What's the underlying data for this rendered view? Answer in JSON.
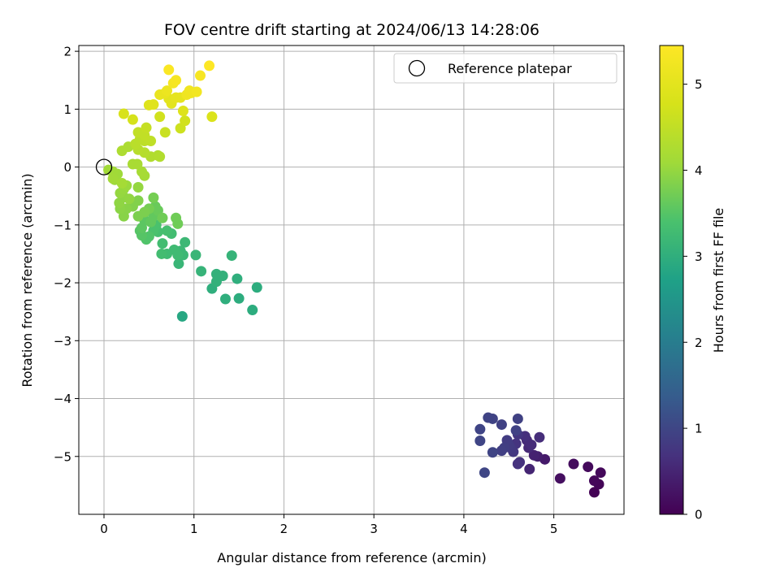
{
  "chart_data": {
    "type": "scatter",
    "title": "FOV centre drift starting at 2024/06/13 14:28:06",
    "xlabel": "Angular distance from reference (arcmin)",
    "ylabel": "Rotation from reference (arcmin)",
    "xlim": [
      -0.28,
      5.78
    ],
    "ylim": [
      -6.0,
      2.1
    ],
    "xticks": [
      0,
      1,
      2,
      3,
      4,
      5
    ],
    "yticks": [
      -5,
      -4,
      -3,
      -2,
      -1,
      0,
      1,
      2
    ],
    "grid": true,
    "legend": {
      "label": "Reference platepar",
      "placement": "top-right"
    },
    "reference_point": {
      "x": 0,
      "y": 0
    },
    "colorbar": {
      "label": "Hours from first FF file",
      "range": [
        0,
        5.45
      ],
      "ticks": [
        0,
        1,
        2,
        3,
        4,
        5
      ],
      "colormap": "viridis"
    },
    "points": [
      {
        "x": 5.45,
        "y": -5.62,
        "t": 0.02
      },
      {
        "x": 5.5,
        "y": -5.48,
        "t": 0.05
      },
      {
        "x": 5.45,
        "y": -5.42,
        "t": 0.08
      },
      {
        "x": 5.52,
        "y": -5.28,
        "t": 0.1
      },
      {
        "x": 5.38,
        "y": -5.18,
        "t": 0.12
      },
      {
        "x": 5.22,
        "y": -5.13,
        "t": 0.15
      },
      {
        "x": 5.07,
        "y": -5.38,
        "t": 0.2
      },
      {
        "x": 4.9,
        "y": -5.05,
        "t": 0.35
      },
      {
        "x": 4.82,
        "y": -5.0,
        "t": 0.4
      },
      {
        "x": 4.78,
        "y": -4.98,
        "t": 0.45
      },
      {
        "x": 4.73,
        "y": -5.22,
        "t": 0.5
      },
      {
        "x": 4.72,
        "y": -4.85,
        "t": 0.55
      },
      {
        "x": 4.7,
        "y": -4.72,
        "t": 0.58
      },
      {
        "x": 4.75,
        "y": -4.8,
        "t": 0.6
      },
      {
        "x": 4.84,
        "y": -4.67,
        "t": 0.62
      },
      {
        "x": 4.68,
        "y": -4.65,
        "t": 0.65
      },
      {
        "x": 4.62,
        "y": -5.1,
        "t": 0.68
      },
      {
        "x": 4.6,
        "y": -5.13,
        "t": 0.7
      },
      {
        "x": 4.58,
        "y": -4.78,
        "t": 0.72
      },
      {
        "x": 4.6,
        "y": -4.62,
        "t": 0.75
      },
      {
        "x": 4.55,
        "y": -4.92,
        "t": 0.78
      },
      {
        "x": 4.52,
        "y": -4.85,
        "t": 0.8
      },
      {
        "x": 4.5,
        "y": -4.8,
        "t": 0.82
      },
      {
        "x": 4.48,
        "y": -4.72,
        "t": 0.85
      },
      {
        "x": 4.45,
        "y": -4.85,
        "t": 0.88
      },
      {
        "x": 4.42,
        "y": -4.9,
        "t": 0.9
      },
      {
        "x": 4.42,
        "y": -4.45,
        "t": 0.92
      },
      {
        "x": 4.6,
        "y": -4.35,
        "t": 0.93
      },
      {
        "x": 4.58,
        "y": -4.55,
        "t": 0.94
      },
      {
        "x": 4.32,
        "y": -4.35,
        "t": 0.95
      },
      {
        "x": 4.27,
        "y": -4.33,
        "t": 0.96
      },
      {
        "x": 4.32,
        "y": -4.93,
        "t": 0.97
      },
      {
        "x": 4.18,
        "y": -4.53,
        "t": 0.98
      },
      {
        "x": 4.18,
        "y": -4.73,
        "t": 0.99
      },
      {
        "x": 4.23,
        "y": -5.28,
        "t": 1.0
      },
      {
        "x": 0.87,
        "y": -2.58,
        "t": 2.85
      },
      {
        "x": 1.65,
        "y": -2.47,
        "t": 2.95
      },
      {
        "x": 1.7,
        "y": -2.08,
        "t": 2.95
      },
      {
        "x": 1.5,
        "y": -2.27,
        "t": 2.95
      },
      {
        "x": 1.35,
        "y": -2.28,
        "t": 3.0
      },
      {
        "x": 1.48,
        "y": -1.93,
        "t": 3.0
      },
      {
        "x": 1.2,
        "y": -2.1,
        "t": 3.0
      },
      {
        "x": 1.25,
        "y": -1.98,
        "t": 3.05
      },
      {
        "x": 1.25,
        "y": -1.85,
        "t": 3.05
      },
      {
        "x": 1.32,
        "y": -1.88,
        "t": 3.05
      },
      {
        "x": 1.42,
        "y": -1.53,
        "t": 3.1
      },
      {
        "x": 1.08,
        "y": -1.8,
        "t": 3.1
      },
      {
        "x": 1.02,
        "y": -1.52,
        "t": 3.15
      },
      {
        "x": 0.83,
        "y": -1.67,
        "t": 3.15
      },
      {
        "x": 0.9,
        "y": -1.3,
        "t": 3.2
      },
      {
        "x": 0.88,
        "y": -1.52,
        "t": 3.2
      },
      {
        "x": 0.85,
        "y": -1.45,
        "t": 3.2
      },
      {
        "x": 0.78,
        "y": -1.43,
        "t": 3.25
      },
      {
        "x": 0.82,
        "y": -1.52,
        "t": 3.25
      },
      {
        "x": 0.7,
        "y": -1.5,
        "t": 3.25
      },
      {
        "x": 0.64,
        "y": -1.5,
        "t": 3.3
      },
      {
        "x": 0.65,
        "y": -1.32,
        "t": 3.3
      },
      {
        "x": 0.75,
        "y": -1.15,
        "t": 3.3
      },
      {
        "x": 0.7,
        "y": -1.1,
        "t": 3.35
      },
      {
        "x": 0.6,
        "y": -1.12,
        "t": 3.35
      },
      {
        "x": 0.58,
        "y": -1.0,
        "t": 3.4
      },
      {
        "x": 0.55,
        "y": -1.1,
        "t": 3.4
      },
      {
        "x": 0.5,
        "y": -1.2,
        "t": 3.45
      },
      {
        "x": 0.47,
        "y": -1.25,
        "t": 3.45
      },
      {
        "x": 0.42,
        "y": -1.18,
        "t": 3.5
      },
      {
        "x": 0.4,
        "y": -1.1,
        "t": 3.5
      },
      {
        "x": 0.42,
        "y": -1.05,
        "t": 3.55
      },
      {
        "x": 0.45,
        "y": -0.92,
        "t": 3.55
      },
      {
        "x": 0.52,
        "y": -0.95,
        "t": 3.6
      },
      {
        "x": 0.55,
        "y": -0.85,
        "t": 3.6
      },
      {
        "x": 0.6,
        "y": -0.75,
        "t": 3.65
      },
      {
        "x": 0.57,
        "y": -0.68,
        "t": 3.65
      },
      {
        "x": 0.65,
        "y": -0.88,
        "t": 3.7
      },
      {
        "x": 0.8,
        "y": -0.88,
        "t": 3.7
      },
      {
        "x": 0.82,
        "y": -0.98,
        "t": 3.7
      },
      {
        "x": 0.55,
        "y": -0.53,
        "t": 3.75
      },
      {
        "x": 0.5,
        "y": -0.72,
        "t": 3.75
      },
      {
        "x": 0.45,
        "y": -0.78,
        "t": 3.8
      },
      {
        "x": 0.38,
        "y": -0.85,
        "t": 3.8
      },
      {
        "x": 0.38,
        "y": -0.58,
        "t": 3.85
      },
      {
        "x": 0.32,
        "y": -0.68,
        "t": 3.85
      },
      {
        "x": 0.25,
        "y": -0.72,
        "t": 3.9
      },
      {
        "x": 0.22,
        "y": -0.85,
        "t": 3.9
      },
      {
        "x": 0.18,
        "y": -0.72,
        "t": 3.92
      },
      {
        "x": 0.17,
        "y": -0.62,
        "t": 3.95
      },
      {
        "x": 0.22,
        "y": -0.52,
        "t": 3.95
      },
      {
        "x": 0.28,
        "y": -0.55,
        "t": 3.98
      },
      {
        "x": 0.38,
        "y": -0.35,
        "t": 4.0
      },
      {
        "x": 0.18,
        "y": -0.45,
        "t": 4.0
      },
      {
        "x": 0.22,
        "y": -0.38,
        "t": 4.02
      },
      {
        "x": 0.25,
        "y": -0.32,
        "t": 4.05
      },
      {
        "x": 0.12,
        "y": -0.22,
        "t": 4.05
      },
      {
        "x": 0.15,
        "y": -0.12,
        "t": 4.08
      },
      {
        "x": 0.1,
        "y": -0.08,
        "t": 4.1
      },
      {
        "x": 0.05,
        "y": -0.05,
        "t": 4.1
      },
      {
        "x": 0.1,
        "y": -0.2,
        "t": 4.12
      },
      {
        "x": 0.2,
        "y": -0.28,
        "t": 4.15
      },
      {
        "x": 0.45,
        "y": -0.15,
        "t": 4.15
      },
      {
        "x": 0.42,
        "y": -0.08,
        "t": 4.18
      },
      {
        "x": 0.37,
        "y": 0.05,
        "t": 4.2
      },
      {
        "x": 0.32,
        "y": 0.05,
        "t": 4.2
      },
      {
        "x": 0.27,
        "y": 0.35,
        "t": 4.25
      },
      {
        "x": 0.2,
        "y": 0.28,
        "t": 4.25
      },
      {
        "x": 0.52,
        "y": 0.18,
        "t": 4.3
      },
      {
        "x": 0.6,
        "y": 0.2,
        "t": 4.3
      },
      {
        "x": 0.62,
        "y": 0.18,
        "t": 4.32
      },
      {
        "x": 0.45,
        "y": 0.25,
        "t": 4.35
      },
      {
        "x": 0.38,
        "y": 0.3,
        "t": 4.38
      },
      {
        "x": 0.35,
        "y": 0.4,
        "t": 4.4
      },
      {
        "x": 0.4,
        "y": 0.48,
        "t": 4.42
      },
      {
        "x": 0.45,
        "y": 0.45,
        "t": 4.45
      },
      {
        "x": 0.52,
        "y": 0.45,
        "t": 4.48
      },
      {
        "x": 0.38,
        "y": 0.6,
        "t": 4.5
      },
      {
        "x": 0.45,
        "y": 0.55,
        "t": 4.5
      },
      {
        "x": 0.47,
        "y": 0.68,
        "t": 4.55
      },
      {
        "x": 0.68,
        "y": 0.6,
        "t": 4.6
      },
      {
        "x": 0.85,
        "y": 0.67,
        "t": 4.65
      },
      {
        "x": 0.62,
        "y": 0.87,
        "t": 4.7
      },
      {
        "x": 0.9,
        "y": 0.8,
        "t": 4.7
      },
      {
        "x": 0.32,
        "y": 0.82,
        "t": 4.75
      },
      {
        "x": 0.22,
        "y": 0.92,
        "t": 4.8
      },
      {
        "x": 1.2,
        "y": 0.87,
        "t": 4.85
      },
      {
        "x": 0.88,
        "y": 0.97,
        "t": 4.9
      },
      {
        "x": 0.5,
        "y": 1.07,
        "t": 4.9
      },
      {
        "x": 0.55,
        "y": 1.08,
        "t": 4.95
      },
      {
        "x": 0.75,
        "y": 1.1,
        "t": 5.0
      },
      {
        "x": 0.72,
        "y": 1.18,
        "t": 5.0
      },
      {
        "x": 0.8,
        "y": 1.2,
        "t": 5.05
      },
      {
        "x": 0.85,
        "y": 1.2,
        "t": 5.05
      },
      {
        "x": 0.62,
        "y": 1.25,
        "t": 5.1
      },
      {
        "x": 0.68,
        "y": 1.28,
        "t": 5.1
      },
      {
        "x": 0.7,
        "y": 1.32,
        "t": 5.15
      },
      {
        "x": 0.92,
        "y": 1.25,
        "t": 5.2
      },
      {
        "x": 0.97,
        "y": 1.28,
        "t": 5.2
      },
      {
        "x": 0.95,
        "y": 1.32,
        "t": 5.22
      },
      {
        "x": 1.03,
        "y": 1.3,
        "t": 5.25
      },
      {
        "x": 0.77,
        "y": 1.45,
        "t": 5.3
      },
      {
        "x": 0.8,
        "y": 1.5,
        "t": 5.32
      },
      {
        "x": 1.07,
        "y": 1.58,
        "t": 5.35
      },
      {
        "x": 0.72,
        "y": 1.68,
        "t": 5.4
      },
      {
        "x": 1.17,
        "y": 1.75,
        "t": 5.45
      }
    ]
  }
}
